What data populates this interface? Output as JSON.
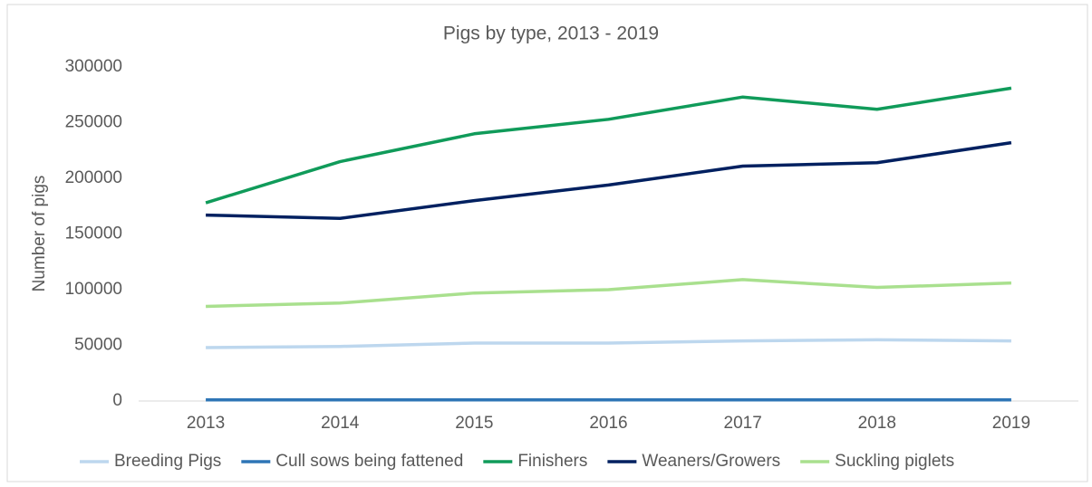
{
  "chart_data": {
    "type": "line",
    "title": "Pigs by type, 2013 - 2019",
    "y_label": "Number of pigs",
    "categories": [
      "2013",
      "2014",
      "2015",
      "2016",
      "2017",
      "2018",
      "2019"
    ],
    "series": [
      {
        "name": "Breeding Pigs",
        "color": "#bdd7ee",
        "values": [
          48000,
          49000,
          52000,
          52000,
          54000,
          55000,
          54000
        ]
      },
      {
        "name": "Cull sows being fattened",
        "color": "#2e75b6",
        "values": [
          1000,
          1000,
          1000,
          1000,
          1000,
          1000,
          1000
        ]
      },
      {
        "name": "Finishers",
        "color": "#109b5a",
        "values": [
          178000,
          215000,
          240000,
          253000,
          273000,
          262000,
          281000
        ]
      },
      {
        "name": "Weaners/Growers",
        "color": "#002060",
        "values": [
          167000,
          164000,
          180000,
          194000,
          211000,
          214000,
          232000
        ]
      },
      {
        "name": "Suckling piglets",
        "color": "#a9e08e",
        "values": [
          85000,
          88000,
          97000,
          100000,
          109000,
          102000,
          106000
        ]
      }
    ],
    "ylim": [
      0,
      300000
    ],
    "yticks": [
      0,
      50000,
      100000,
      150000,
      200000,
      250000,
      300000
    ],
    "grid": false,
    "legend": "bottom"
  }
}
